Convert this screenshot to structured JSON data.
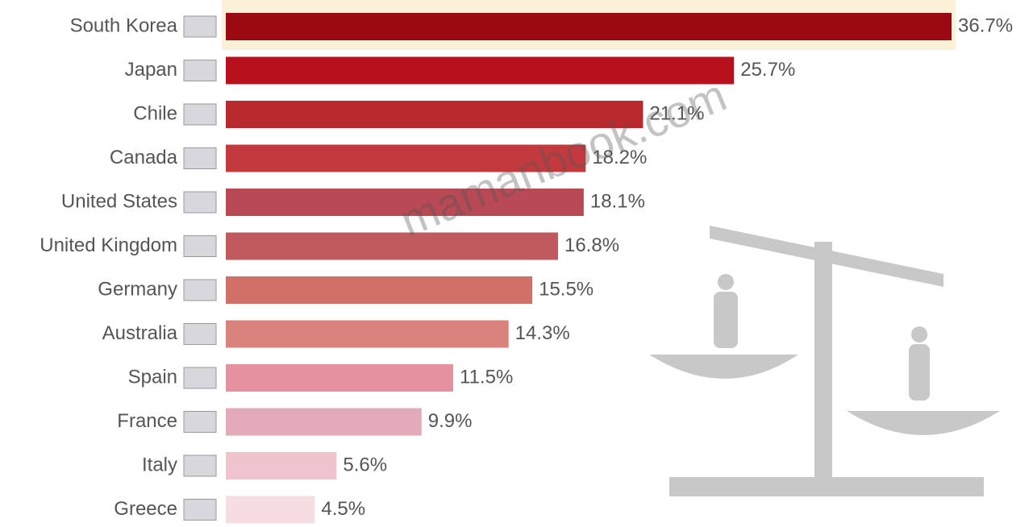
{
  "chart_data": {
    "type": "bar",
    "orientation": "horizontal",
    "categories": [
      "South Korea",
      "Japan",
      "Chile",
      "Canada",
      "United States",
      "United Kingdom",
      "Germany",
      "Australia",
      "Spain",
      "France",
      "Italy",
      "Greece"
    ],
    "values": [
      36.7,
      25.7,
      21.1,
      18.2,
      18.1,
      16.8,
      15.5,
      14.3,
      11.5,
      9.9,
      5.6,
      4.5
    ],
    "value_labels": [
      "36.7%",
      "25.7%",
      "21.1%",
      "18.2%",
      "18.1%",
      "16.8%",
      "15.5%",
      "14.3%",
      "11.5%",
      "9.9%",
      "5.6%",
      "4.5%"
    ],
    "colors": [
      "#9b0a12",
      "#b8101c",
      "#b82a2e",
      "#c23a3e",
      "#b94a55",
      "#c05a5e",
      "#d07068",
      "#d9837c",
      "#e591a0",
      "#e3aab8",
      "#f0c4cc",
      "#f6dde2"
    ],
    "watermark": "mamanbook.com"
  }
}
